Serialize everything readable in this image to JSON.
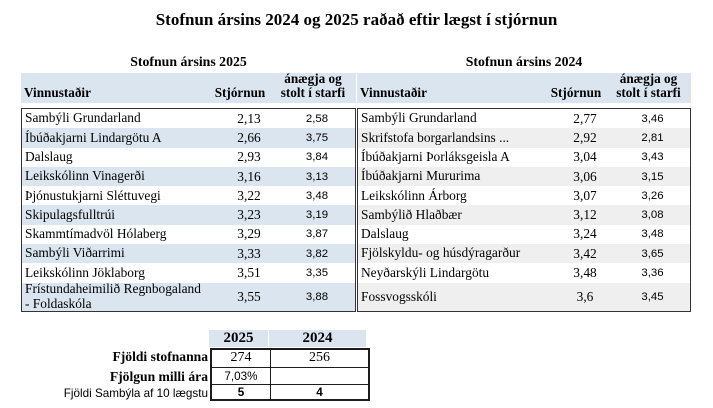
{
  "title": "Stofnun ársins 2024 og 2025 raðað eftir lægst í stjórnun",
  "tables": [
    {
      "id": "2025",
      "heading": "Stofnun ársins 2025",
      "columns": [
        "Vinnustaðir",
        "Stjórnun",
        "ánægja og stolt í starfi"
      ],
      "rows": [
        [
          "Sambýli Grundarland",
          "2,13",
          "2,58"
        ],
        [
          "Íbúðakjarni Lindargötu A",
          "2,66",
          "3,75"
        ],
        [
          "Dalslaug",
          "2,93",
          "3,84"
        ],
        [
          "Leikskólinn Vinagerði",
          "3,16",
          "3,13"
        ],
        [
          "Þjónustukjarni Sléttuvegi",
          "3,22",
          "3,48"
        ],
        [
          "Skipulagsfulltrúi",
          "3,23",
          "3,19"
        ],
        [
          "Skammtímadvöl Hólaberg",
          "3,29",
          "3,87"
        ],
        [
          "Sambýli Viðarrimi",
          "3,33",
          "3,82"
        ],
        [
          "Leikskólinn Jöklaborg",
          "3,51",
          "3,35"
        ],
        [
          "Frístundaheimilið Regnbogaland\n- Foldaskóla",
          "3,55",
          "3,88"
        ]
      ]
    },
    {
      "id": "2024",
      "heading": "Stofnun ársins 2024",
      "columns": [
        "Vinnustaðir",
        "Stjórnun",
        "ánægja og stolt í starfi"
      ],
      "rows": [
        [
          "Sambýli Grundarland",
          "2,77",
          "3,46"
        ],
        [
          "Skrifstofa borgarlandsins ...",
          "2,92",
          "2,81"
        ],
        [
          "Íbúðakjarni Þorláksgeisla A",
          "3,04",
          "3,43"
        ],
        [
          "Íbúðakjarni Mururima",
          "3,06",
          "3,15"
        ],
        [
          "Leikskólinn Árborg",
          "3,07",
          "3,26"
        ],
        [
          "Sambýlið Hlaðbær",
          "3,12",
          "3,08"
        ],
        [
          "Dalslaug",
          "3,24",
          "3,48"
        ],
        [
          "Fjölskyldu- og húsdýragarður",
          "3,42",
          "3,65"
        ],
        [
          "Neyðarskýli Lindargötu",
          "3,48",
          "3,36"
        ],
        [
          "Fossvogsskóli",
          "3,6",
          "3,45"
        ]
      ]
    }
  ],
  "summary": {
    "col_headers": [
      "2025",
      "2024"
    ],
    "rows": [
      {
        "label": "Fjöldi stofnanna",
        "values": [
          "274",
          "256"
        ]
      },
      {
        "label": "Fjölgun milli ára",
        "values": [
          "7,03%",
          ""
        ]
      },
      {
        "label": "Fjöldi Sambýla af 10 lægstu",
        "values": [
          "5",
          "4"
        ]
      }
    ]
  },
  "colors": {
    "band_blue": "#dbe5f0",
    "band_gray": "#efefef"
  }
}
